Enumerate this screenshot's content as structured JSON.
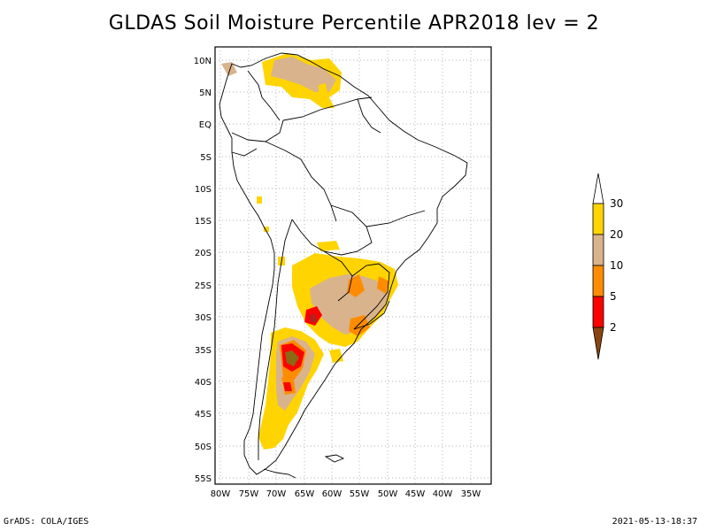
{
  "title": "GLDAS Soil Moisture Percentile APR2018 lev = 2",
  "footer": {
    "left": "GrADS: COLA/IGES",
    "right": "2021-05-13-18:37"
  },
  "axes": {
    "lat_labels": [
      "10N",
      "5N",
      "EQ",
      "5S",
      "10S",
      "15S",
      "20S",
      "25S",
      "30S",
      "35S",
      "40S",
      "45S",
      "50S",
      "55S"
    ],
    "lon_labels": [
      "80W",
      "75W",
      "70W",
      "65W",
      "60W",
      "55W",
      "50W",
      "45W",
      "40W",
      "35W"
    ]
  },
  "legend": {
    "labels": [
      "30",
      "20",
      "10",
      "5",
      "2"
    ],
    "colors": {
      "above": "#ffffff",
      "c20_30": "#ffd400",
      "c10_20": "#d9b38c",
      "c5_10": "#ff8c00",
      "c2_5": "#ff0000",
      "below": "#8b4513"
    }
  },
  "colors": {
    "coast": "#000000",
    "grid": "#999999",
    "dark_red": "#b22222",
    "olive": "#8b6914"
  }
}
